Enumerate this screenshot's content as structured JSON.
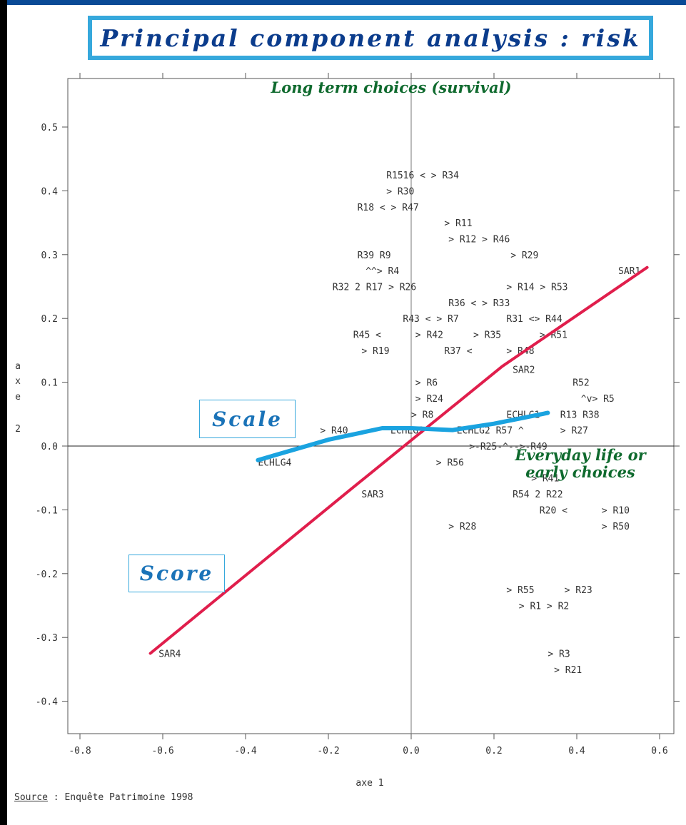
{
  "header": {
    "title": "Principal component analysis : risk",
    "scale_label": "Scale",
    "score_label": "Score"
  },
  "footer": {
    "source_label": "Source",
    "source_text": " : Enquête Patrimoine 1998"
  },
  "colors": {
    "score_line": "#e01e4c",
    "scale_line": "#1aa3e0",
    "annotation": "#0f6a2e",
    "title_border": "#36a8dc"
  },
  "chart_data": {
    "type": "scatter",
    "title": "",
    "xlabel": "axe 1",
    "ylabel": "a x e 2",
    "xlim": [
      -0.85,
      0.62
    ],
    "ylim": [
      -0.45,
      0.58
    ],
    "grid": false,
    "x_ticks": [
      "-0.8",
      "-0.6",
      "-0.4",
      "-0.2",
      "0.0",
      "0.2",
      "0.4",
      "0.6"
    ],
    "y_ticks": [
      "0.5",
      "0.4",
      "0.3",
      "0.2",
      "0.1",
      "0.0",
      "-0.1",
      "-0.2",
      "-0.3",
      "-0.4"
    ],
    "annotations": [
      {
        "text": "Long term choices (survival)",
        "x": 0.0,
        "y": 0.56
      },
      {
        "text": "Everyday life or",
        "x": 0.38,
        "y": -0.015
      },
      {
        "text": "early choices",
        "x": 0.38,
        "y": -0.04
      }
    ],
    "series": [
      {
        "name": "Score",
        "type": "line",
        "points": [
          [
            -0.63,
            -0.325
          ],
          [
            -0.15,
            -0.07
          ],
          [
            0.22,
            0.125
          ],
          [
            0.57,
            0.28
          ]
        ]
      },
      {
        "name": "Scale",
        "type": "line",
        "points": [
          [
            -0.37,
            -0.022
          ],
          [
            -0.2,
            0.01
          ],
          [
            -0.07,
            0.028
          ],
          [
            0.0,
            0.028
          ],
          [
            0.1,
            0.025
          ],
          [
            0.2,
            0.035
          ],
          [
            0.33,
            0.052
          ]
        ]
      }
    ],
    "points": [
      {
        "label": "R1516 <    > R34",
        "x": -0.06,
        "y": 0.425
      },
      {
        "label": "> R30",
        "x": -0.06,
        "y": 0.4
      },
      {
        "label": "R18 <  > R47",
        "x": -0.13,
        "y": 0.375
      },
      {
        "label": "> R11",
        "x": 0.08,
        "y": 0.35
      },
      {
        "label": "> R12 > R46",
        "x": 0.09,
        "y": 0.325
      },
      {
        "label": "R39 R9",
        "x": -0.13,
        "y": 0.3
      },
      {
        "label": "> R29",
        "x": 0.24,
        "y": 0.3
      },
      {
        "label": "^^> R4",
        "x": -0.11,
        "y": 0.275
      },
      {
        "label": "R32 2 R17 > R26",
        "x": -0.19,
        "y": 0.25
      },
      {
        "label": "> R14 > R53",
        "x": 0.23,
        "y": 0.25
      },
      {
        "label": "R36 <    > R33",
        "x": 0.09,
        "y": 0.225
      },
      {
        "label": "R43 <    > R7",
        "x": -0.02,
        "y": 0.2
      },
      {
        "label": "R31 <> R44",
        "x": 0.23,
        "y": 0.2
      },
      {
        "label": "R45 <",
        "x": -0.14,
        "y": 0.175
      },
      {
        "label": "> R42",
        "x": 0.01,
        "y": 0.175
      },
      {
        "label": "> R35",
        "x": 0.15,
        "y": 0.175
      },
      {
        "label": "> R51",
        "x": 0.31,
        "y": 0.175
      },
      {
        "label": "> R19",
        "x": -0.12,
        "y": 0.15
      },
      {
        "label": "R37 <",
        "x": 0.08,
        "y": 0.15
      },
      {
        "label": "> R48",
        "x": 0.23,
        "y": 0.15
      },
      {
        "label": "SAR2",
        "x": 0.245,
        "y": 0.12
      },
      {
        "label": "R52",
        "x": 0.39,
        "y": 0.1
      },
      {
        "label": "> R6",
        "x": 0.01,
        "y": 0.1
      },
      {
        "label": "^v> R5",
        "x": 0.41,
        "y": 0.075
      },
      {
        "label": "> R24",
        "x": 0.01,
        "y": 0.075
      },
      {
        "label": "> R8",
        "x": 0.0,
        "y": 0.05
      },
      {
        "label": "ECHLG1",
        "x": 0.23,
        "y": 0.05
      },
      {
        "label": "R13 R38",
        "x": 0.36,
        "y": 0.05
      },
      {
        "label": "> R40",
        "x": -0.22,
        "y": 0.025
      },
      {
        "label": "ECHLG3",
        "x": -0.05,
        "y": 0.025
      },
      {
        "label": "ECHLG2 R57 ^",
        "x": 0.11,
        "y": 0.025
      },
      {
        "label": "> R27",
        "x": 0.36,
        "y": 0.025
      },
      {
        "label": ">-R25-^-->-R49",
        "x": 0.14,
        "y": 0.0
      },
      {
        "label": "ECHLG4",
        "x": -0.37,
        "y": -0.025
      },
      {
        "label": "> R56",
        "x": 0.06,
        "y": -0.025
      },
      {
        "label": "> R41",
        "x": 0.29,
        "y": -0.05
      },
      {
        "label": "SAR3",
        "x": -0.12,
        "y": -0.075
      },
      {
        "label": "R54 2 R22",
        "x": 0.245,
        "y": -0.075
      },
      {
        "label": "R20 <",
        "x": 0.31,
        "y": -0.1
      },
      {
        "label": "> R10",
        "x": 0.46,
        "y": -0.1
      },
      {
        "label": "> R28",
        "x": 0.09,
        "y": -0.125
      },
      {
        "label": "> R50",
        "x": 0.46,
        "y": -0.125
      },
      {
        "label": "> R55",
        "x": 0.23,
        "y": -0.225
      },
      {
        "label": "> R23",
        "x": 0.37,
        "y": -0.225
      },
      {
        "label": "> R1 > R2",
        "x": 0.26,
        "y": -0.25
      },
      {
        "label": "> R3",
        "x": 0.33,
        "y": -0.325
      },
      {
        "label": "> R21",
        "x": 0.345,
        "y": -0.35
      },
      {
        "label": "SAR1",
        "x": 0.5,
        "y": 0.275
      },
      {
        "label": "SAR4",
        "x": -0.61,
        "y": -0.325
      }
    ]
  }
}
